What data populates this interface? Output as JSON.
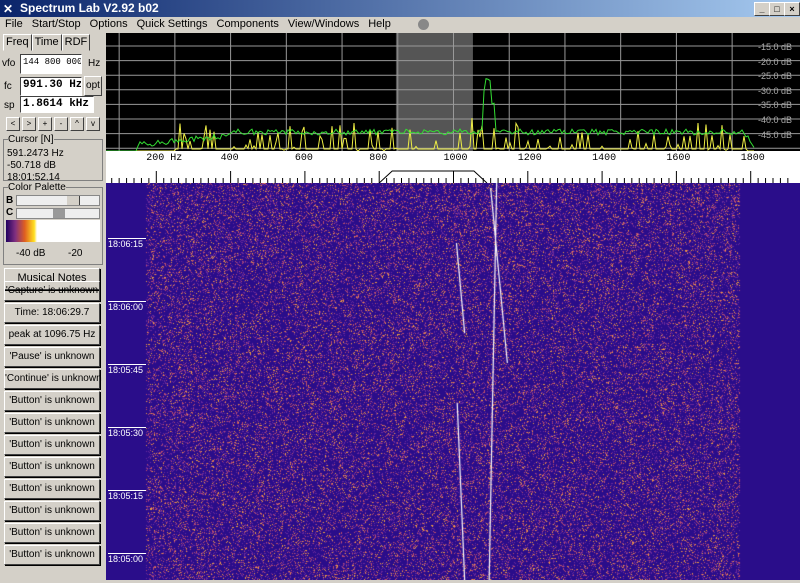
{
  "window": {
    "title": "Spectrum Lab V2.92 b02",
    "controls": [
      "_",
      "□",
      "×"
    ]
  },
  "menu": [
    "File",
    "Start/Stop",
    "Options",
    "Quick Settings",
    "Components",
    "View/Windows",
    "Help"
  ],
  "tabs": [
    "Freq",
    "Time",
    "RDF"
  ],
  "freq": {
    "vfo_label": "vfo",
    "vfo": "144 800 000",
    "vfo_unit": "Hz",
    "fc_label": "fc",
    "fc": "991.30 Hz",
    "opt": "opt",
    "sp_label": "sp",
    "sp": "1.8614 kHz",
    "nav_buttons": [
      "<",
      ">",
      "+",
      "-",
      "^",
      "v"
    ]
  },
  "cursor": {
    "title": "Cursor [N]",
    "freq": "591.2473 Hz",
    "level": "-50.718 dB",
    "time": "18:01:52.14"
  },
  "palette": {
    "title": "Color Palette",
    "b": "B",
    "c": "C",
    "left_label": "-40 dB",
    "right_label": "-20"
  },
  "buttons": [
    "Musical Notes",
    "'Capture' is unknown",
    "Time:  18:06:29.7",
    "peak at 1096.75 Hz",
    "'Pause' is unknown",
    "'Continue' is unknown",
    "'Button' is unknown",
    "'Button' is unknown",
    "'Button' is unknown",
    "'Button' is unknown",
    "'Button' is unknown",
    "'Button' is unknown",
    "'Button' is unknown",
    "'Button' is unknown"
  ],
  "spectrum": {
    "db_labels": [
      "-15.0 dB",
      "-20.0 dB",
      "-25.0 dB",
      "-30.0 dB",
      "-35.0 dB",
      "-40.0 dB",
      "-45.0 dB"
    ],
    "freq_labels": [
      "200 Hz",
      "400",
      "600",
      "800",
      "1000",
      "1200",
      "1400",
      "1600",
      "1800"
    ],
    "colors": {
      "spectrum": "#33dd33",
      "peak": "#eeee44",
      "highlight": "#555555"
    }
  },
  "waterfall": {
    "time_labels": [
      "18:06:15",
      "18:06:00",
      "18:05:45",
      "18:05:30",
      "18:05:15",
      "18:05:00"
    ],
    "colors": {
      "background": "#2a0d8a",
      "noise": "#e08040"
    }
  }
}
